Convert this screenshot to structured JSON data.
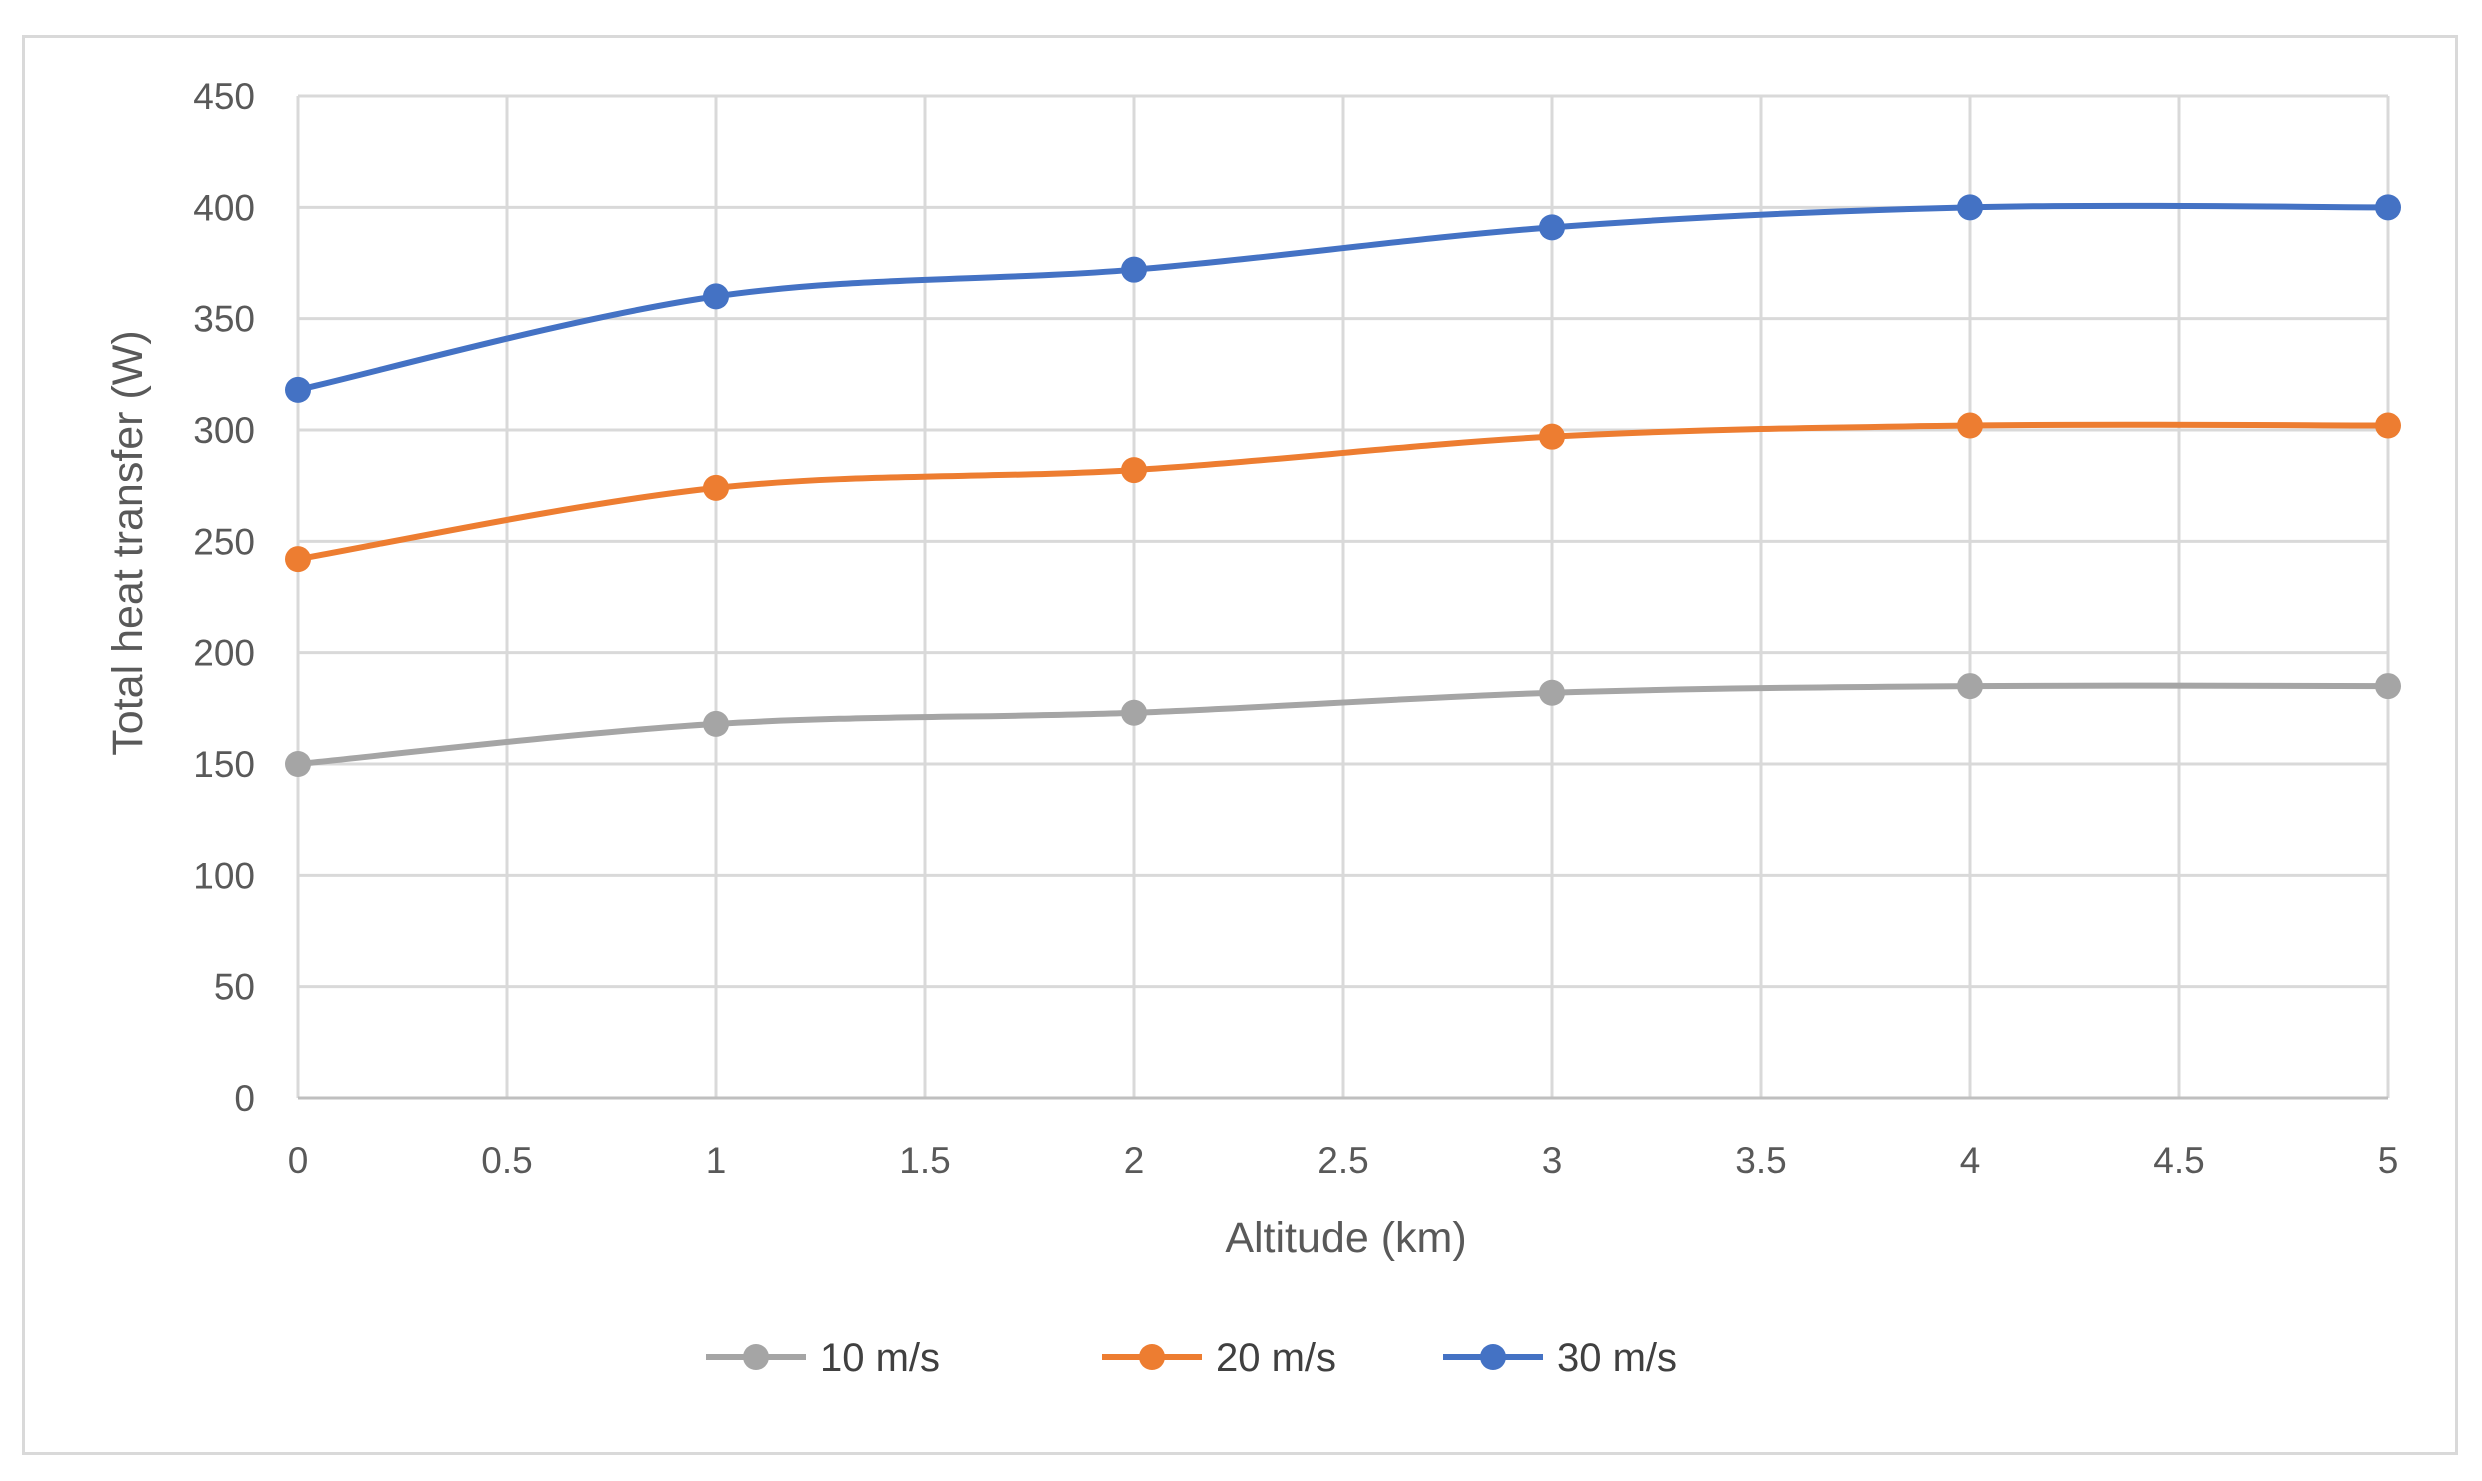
{
  "chart_data": {
    "type": "line",
    "title": "",
    "xlabel": "Altitude (km)",
    "ylabel": "Total heat transfer (W)",
    "xlim": [
      0,
      5
    ],
    "ylim": [
      0,
      450
    ],
    "x_ticks": [
      "0",
      "0.5",
      "1",
      "1.5",
      "2",
      "2.5",
      "3",
      "3.5",
      "4",
      "4.5",
      "5"
    ],
    "y_ticks": [
      "0",
      "50",
      "100",
      "150",
      "200",
      "250",
      "300",
      "350",
      "400",
      "450"
    ],
    "grid": true,
    "legend_position": "bottom",
    "x": [
      0,
      1,
      2,
      3,
      4,
      5
    ],
    "series": [
      {
        "name": "10 m/s",
        "color": "#a5a5a5",
        "values": [
          150,
          168,
          173,
          182,
          185,
          185
        ]
      },
      {
        "name": "20 m/s",
        "color": "#ed7d31",
        "values": [
          242,
          274,
          282,
          297,
          302,
          302
        ]
      },
      {
        "name": "30 m/s",
        "color": "#4472c4",
        "values": [
          318,
          360,
          372,
          391,
          400,
          400
        ]
      }
    ]
  }
}
